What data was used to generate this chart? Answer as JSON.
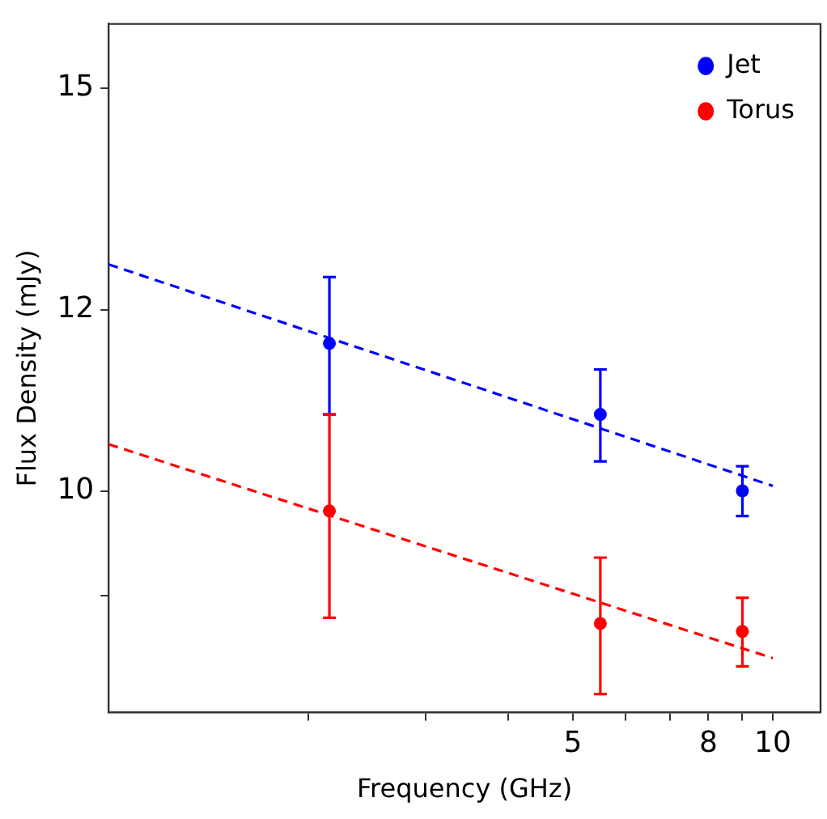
{
  "chart_data": {
    "type": "scatter",
    "xlabel": "Frequency (GHz)",
    "ylabel": "Flux Density (mJy)",
    "log": "xy",
    "grid": false,
    "legend": "top right",
    "marker": "circle",
    "xlim": [
      1,
      11.8
    ],
    "ylim": [
      8,
      16
    ],
    "xticks": [
      {
        "value": 2,
        "label": null
      },
      {
        "value": 3,
        "label": null
      },
      {
        "value": 4,
        "label": null
      },
      5,
      {
        "value": 6,
        "label": null
      },
      {
        "value": 7,
        "label": null
      },
      8,
      {
        "value": 9,
        "label": null
      },
      10
    ],
    "yticks": [
      {
        "value": 9,
        "label": null
      },
      10,
      12,
      15
    ],
    "series": [
      {
        "name": "Jet",
        "color": "#0000ff",
        "x": [
          2.15,
          5.5,
          9
        ],
        "values": [
          11.6,
          10.8,
          10.0
        ],
        "errors": [
          0.8,
          0.5,
          0.25
        ]
      },
      {
        "name": "Torus",
        "color": "#ff0000",
        "x": [
          2.15,
          5.5,
          9
        ],
        "values": [
          9.8,
          8.75,
          8.68
        ],
        "errors": [
          1.0,
          0.6,
          0.3
        ]
      },
      {
        "type": "line",
        "color": "#0000ff",
        "x": [
          1,
          10
        ],
        "values": [
          12.56,
          10.05
        ],
        "line_style": "dashed",
        "marker": "none"
      },
      {
        "type": "line",
        "color": "#ff0000",
        "x": [
          1,
          10
        ],
        "values": [
          10.48,
          8.45
        ],
        "line_style": "dashed",
        "marker": "none"
      }
    ]
  }
}
